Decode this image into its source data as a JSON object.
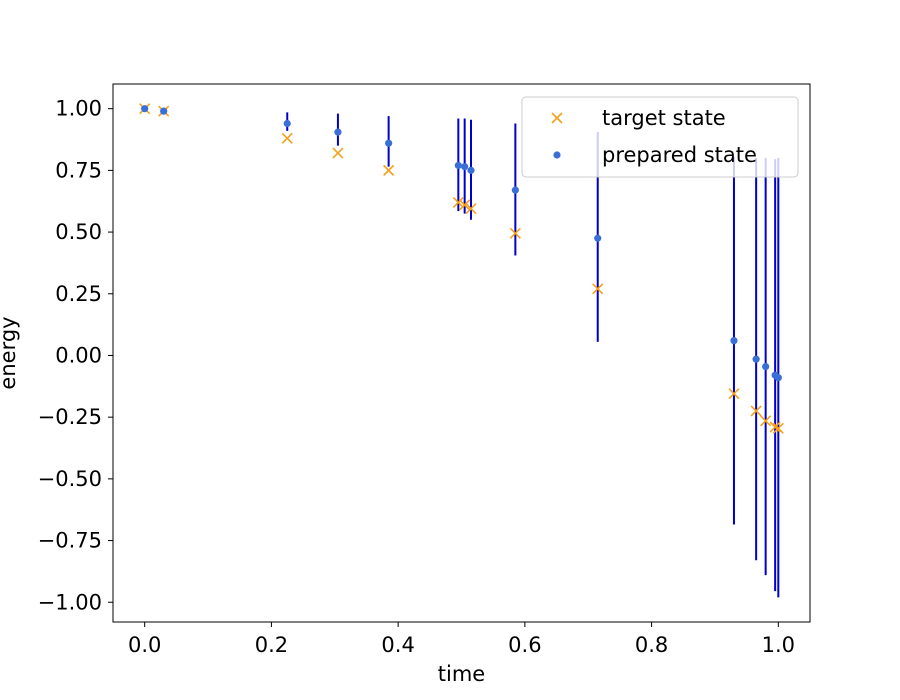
{
  "chart_data": {
    "type": "scatter",
    "xlabel": "time",
    "ylabel": "energy",
    "xlim": [
      -0.05,
      1.05
    ],
    "ylim": [
      -1.08,
      1.1
    ],
    "xticks": [
      0.0,
      0.2,
      0.4,
      0.6,
      0.8,
      1.0
    ],
    "xtick_labels": [
      "0.0",
      "0.2",
      "0.4",
      "0.6",
      "0.8",
      "1.0"
    ],
    "yticks": [
      1.0,
      0.75,
      0.5,
      0.25,
      0.0,
      -0.25,
      -0.5,
      -0.75,
      -1.0
    ],
    "ytick_labels": [
      "1.00",
      "0.75",
      "0.50",
      "0.25",
      "0.00",
      "−0.25",
      "−0.50",
      "−0.75",
      "−1.00"
    ],
    "grid": false,
    "legend": {
      "placement": "top-right"
    },
    "series": [
      {
        "name": "target state",
        "marker": "x",
        "color": "#f5a01a",
        "x": [
          0.0,
          0.03,
          0.225,
          0.305,
          0.385,
          0.495,
          0.505,
          0.515,
          0.585,
          0.715,
          0.93,
          0.965,
          0.98,
          0.995,
          1.0
        ],
        "y": [
          1.0,
          0.99,
          0.88,
          0.82,
          0.75,
          0.62,
          0.61,
          0.595,
          0.495,
          0.27,
          -0.155,
          -0.225,
          -0.265,
          -0.29,
          -0.295
        ]
      },
      {
        "name": "prepared state",
        "marker": "o",
        "color": "#3a6fd8",
        "errorbar_color": "#0000cc",
        "x": [
          0.0,
          0.03,
          0.225,
          0.305,
          0.385,
          0.495,
          0.505,
          0.515,
          0.585,
          0.715,
          0.93,
          0.965,
          0.98,
          0.995,
          1.0
        ],
        "y": [
          1.0,
          0.99,
          0.94,
          0.905,
          0.86,
          0.77,
          0.765,
          0.75,
          0.67,
          0.475,
          0.06,
          -0.015,
          -0.045,
          -0.08,
          -0.09
        ],
        "yerr_low": [
          0.0,
          0.0,
          0.03,
          0.055,
          0.095,
          0.185,
          0.19,
          0.2,
          0.265,
          0.42,
          0.745,
          0.815,
          0.845,
          0.875,
          0.89
        ],
        "yerr_high": [
          0.0,
          0.0,
          0.045,
          0.075,
          0.11,
          0.19,
          0.195,
          0.205,
          0.27,
          0.43,
          0.745,
          0.815,
          0.845,
          0.875,
          0.89
        ]
      }
    ]
  }
}
